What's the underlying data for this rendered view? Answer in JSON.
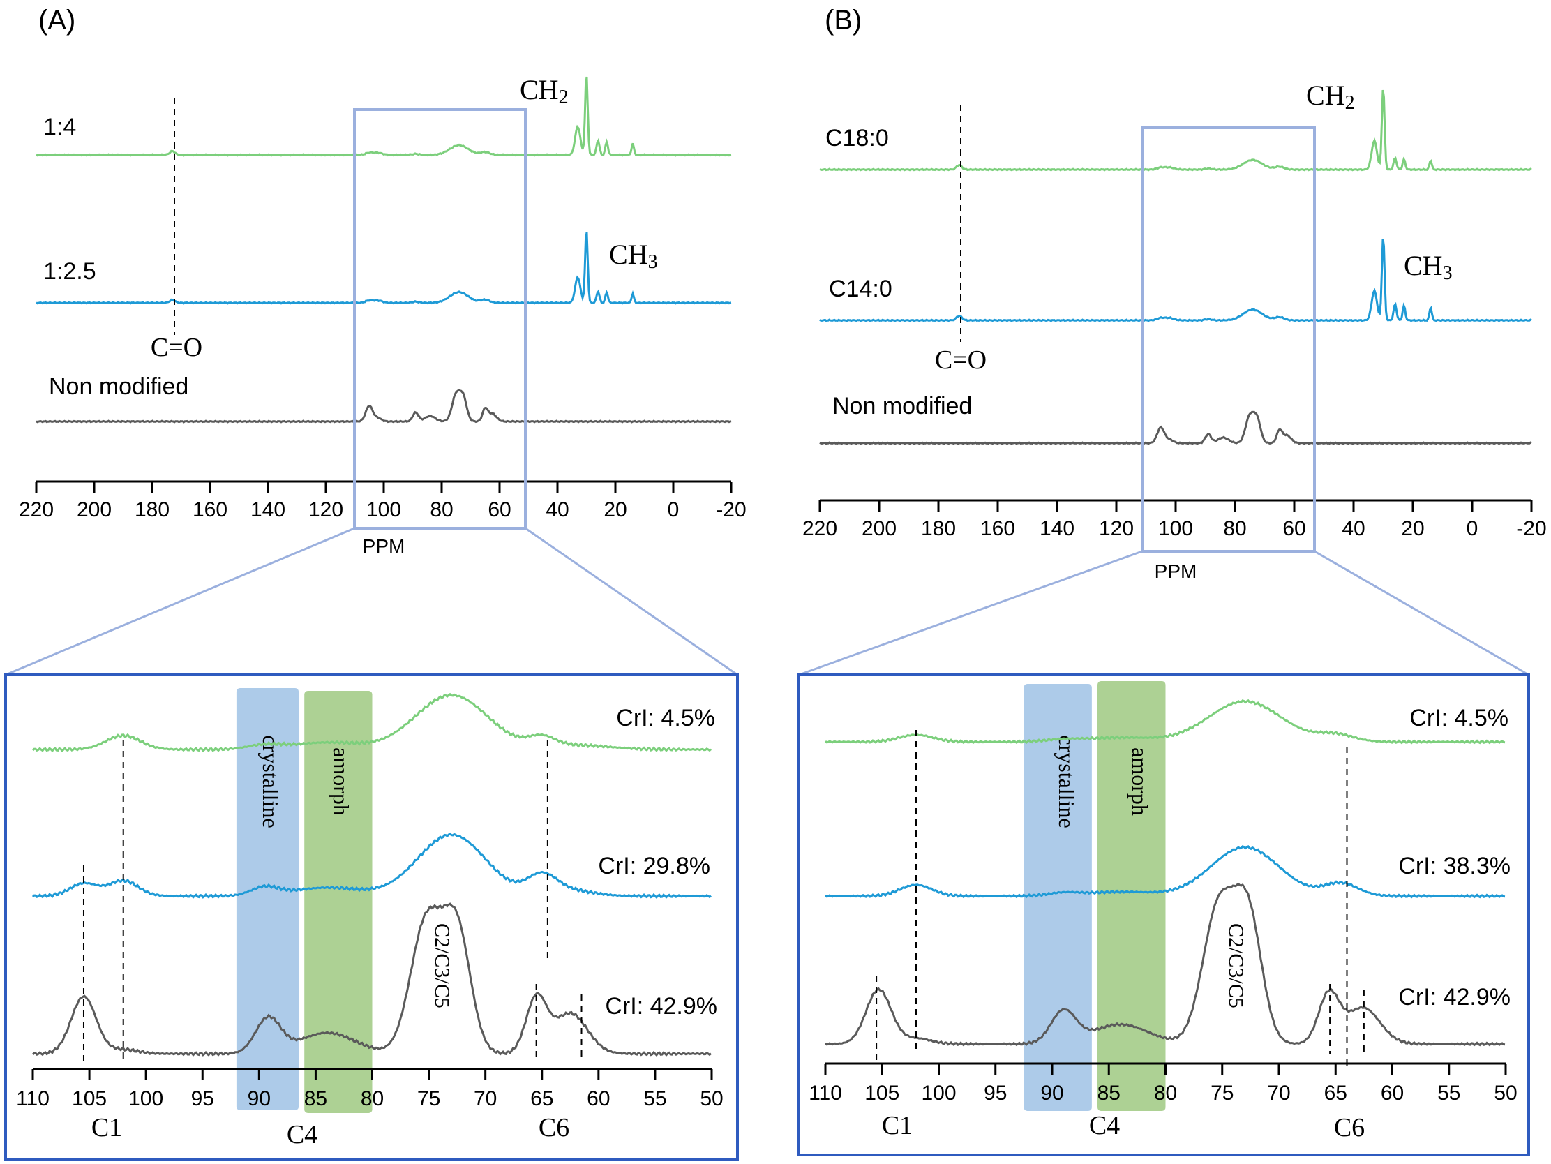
{
  "colors": {
    "green": "#7ccf7c",
    "blue": "#1e9ad6",
    "gray": "#5a5a5a",
    "frame_light": "#9bb0de",
    "frame_dark": "#2f5bbf",
    "crystalline_band": "#a9c8e8",
    "amorph_band": "#a9cf8e"
  },
  "chart_data": [
    {
      "type": "line",
      "panel": "A",
      "view": "full spectrum",
      "panel_label": "(A)",
      "xlabel": "PPM",
      "xlim": [
        220,
        -20
      ],
      "xticks": [
        "220",
        "200",
        "180",
        "160",
        "140",
        "120",
        "100",
        "80",
        "60",
        "40",
        "20",
        "0",
        "-20"
      ],
      "series": [
        {
          "name": "1:4",
          "color": "green"
        },
        {
          "name": "1:2.5",
          "color": "blue"
        },
        {
          "name": "Non modified",
          "color": "gray"
        }
      ],
      "annotations": {
        "co": "C=O",
        "ch2": "CH",
        "ch2_sub": "2",
        "ch3": "CH",
        "ch3_sub": "3"
      },
      "co_ppm": 173,
      "zoom_range_ppm": [
        110,
        50
      ]
    },
    {
      "type": "line",
      "panel": "B",
      "view": "full spectrum",
      "panel_label": "(B)",
      "xlabel": "PPM",
      "xlim": [
        220,
        -20
      ],
      "xticks": [
        "220",
        "200",
        "180",
        "160",
        "140",
        "120",
        "100",
        "80",
        "60",
        "40",
        "20",
        "0",
        "-20"
      ],
      "series": [
        {
          "name": "C18:0",
          "color": "green"
        },
        {
          "name": "C14:0",
          "color": "blue"
        },
        {
          "name": "Non modified",
          "color": "gray"
        }
      ],
      "annotations": {
        "co": "C=O",
        "ch2": "CH",
        "ch2_sub": "2",
        "ch3": "CH",
        "ch3_sub": "3"
      },
      "co_ppm": 173,
      "zoom_range_ppm": [
        110,
        50
      ]
    },
    {
      "type": "line",
      "panel": "A",
      "view": "zoom 110-50 ppm",
      "xlim": [
        110,
        50
      ],
      "xticks": [
        "110",
        "105",
        "100",
        "95",
        "90",
        "85",
        "80",
        "75",
        "70",
        "65",
        "60",
        "55",
        "50"
      ],
      "bands": {
        "crystalline": {
          "label": "crystalline",
          "range": [
            92,
            86.5
          ]
        },
        "amorph": {
          "label": "amorph",
          "range": [
            86,
            80
          ]
        }
      },
      "crl_labels": [
        "CrI: 4.5%",
        "CrI: 29.8%",
        "CrI: 42.9%"
      ],
      "carbon_labels": {
        "c1": "C1",
        "c4": "C4",
        "c6": "C6",
        "c235": "C2/C3/C5"
      },
      "reference_lines_ppm": [
        105.5,
        102,
        65.5,
        64.5,
        61.5
      ]
    },
    {
      "type": "line",
      "panel": "B",
      "view": "zoom 110-50 ppm",
      "xlim": [
        110,
        50
      ],
      "xticks": [
        "110",
        "105",
        "100",
        "95",
        "90",
        "85",
        "80",
        "75",
        "70",
        "65",
        "60",
        "55",
        "50"
      ],
      "bands": {
        "crystalline": {
          "label": "crystalline",
          "range": [
            92.5,
            86.5
          ]
        },
        "amorph": {
          "label": "amorph",
          "range": [
            86,
            80
          ]
        }
      },
      "crl_labels": [
        "CrI: 4.5%",
        "CrI: 38.3%",
        "CrI: 42.9%"
      ],
      "carbon_labels": {
        "c1": "C1",
        "c4": "C4",
        "c6": "C6",
        "c235": "C2/C3/C5"
      },
      "reference_lines_ppm": [
        105.5,
        102,
        65.5,
        64,
        62.5
      ]
    }
  ]
}
